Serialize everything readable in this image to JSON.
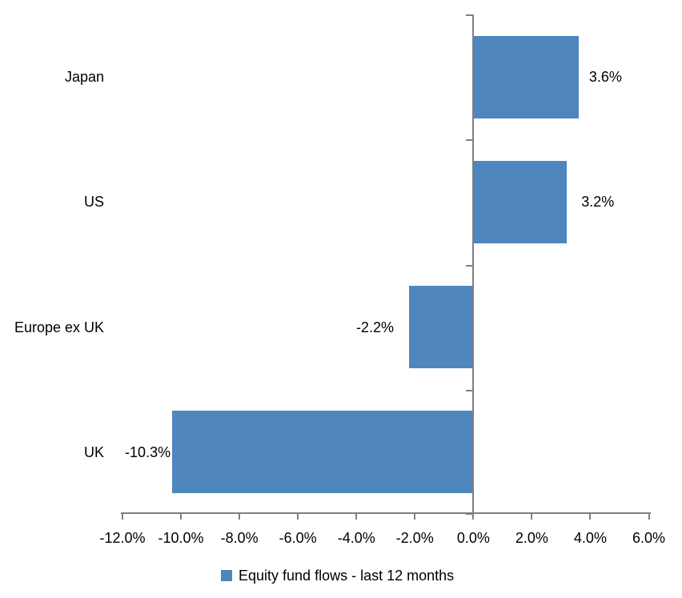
{
  "chart_data": {
    "type": "bar",
    "orientation": "horizontal",
    "title": "",
    "categories": [
      "Japan",
      "US",
      "Europe ex UK",
      "UK"
    ],
    "values": [
      3.6,
      3.2,
      -2.2,
      -10.3
    ],
    "data_labels": [
      "3.6%",
      "3.2%",
      "-2.2%",
      "-10.3%"
    ],
    "x_ticks": [
      -12,
      -10,
      -8,
      -6,
      -4,
      -2,
      0,
      2,
      4,
      6
    ],
    "x_tick_labels": [
      "-12.0%",
      "-10.0%",
      "-8.0%",
      "-6.0%",
      "-4.0%",
      "-2.0%",
      "0.0%",
      "2.0%",
      "4.0%",
      "6.0%"
    ],
    "xlim": [
      -12,
      6
    ],
    "grid": "off",
    "legend_position": "bottom",
    "legend": [
      {
        "label": "Equity fund flows - last 12 months",
        "color": "#4E86BD"
      }
    ],
    "bar_color": "#4E86BD",
    "axis_color": "#808080",
    "text_color": "#000000"
  }
}
